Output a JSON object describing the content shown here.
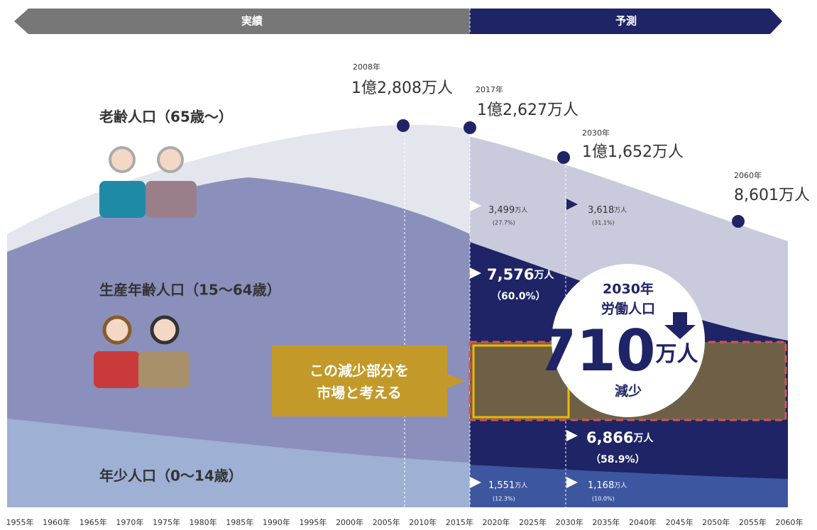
{
  "banner": {
    "actual": "実績",
    "forecast": "予測"
  },
  "totals": [
    {
      "year": "2008年",
      "value": "1億2,808万人"
    },
    {
      "year": "2017年",
      "value": "1億2,627万人"
    },
    {
      "year": "2030年",
      "value": "1億1,652万人"
    },
    {
      "year": "2060年",
      "value": "8,601万人"
    }
  ],
  "groups": {
    "elderly": "老齢人口（65歳～）",
    "working": "生産年齢人口（15～64歳）",
    "youth": "年少人口（0～14歳）"
  },
  "breakdown": {
    "elderly": [
      {
        "value": "3,499",
        "unit": "万人",
        "share": "(27.7%)"
      },
      {
        "value": "3,618",
        "unit": "万人",
        "share": "(31.1%)"
      }
    ],
    "working": [
      {
        "value": "7,576",
        "unit": "万人",
        "share": "（60.0%）"
      },
      {
        "value": "6,866",
        "unit": "万人",
        "share": "（58.9%）"
      }
    ],
    "youth": [
      {
        "value": "1,551",
        "unit": "万人",
        "share": "(12.3%)"
      },
      {
        "value": "1,168",
        "unit": "万人",
        "share": "(10.0%)"
      }
    ]
  },
  "callout": [
    "この減少部分を",
    "市場と考える"
  ],
  "circle": {
    "year": "2030年",
    "label": "労働人口",
    "value": "710",
    "unit": "万人",
    "change": "減少"
  },
  "years": [
    "1955年",
    "1960年",
    "1965年",
    "1970年",
    "1975年",
    "1980年",
    "1985年",
    "1990年",
    "1995年",
    "2000年",
    "2005年",
    "2010年",
    "2015年",
    "2020年",
    "2025年",
    "2030年",
    "2035年",
    "2040年",
    "2045年",
    "2050年",
    "2055年",
    "2060年"
  ]
}
